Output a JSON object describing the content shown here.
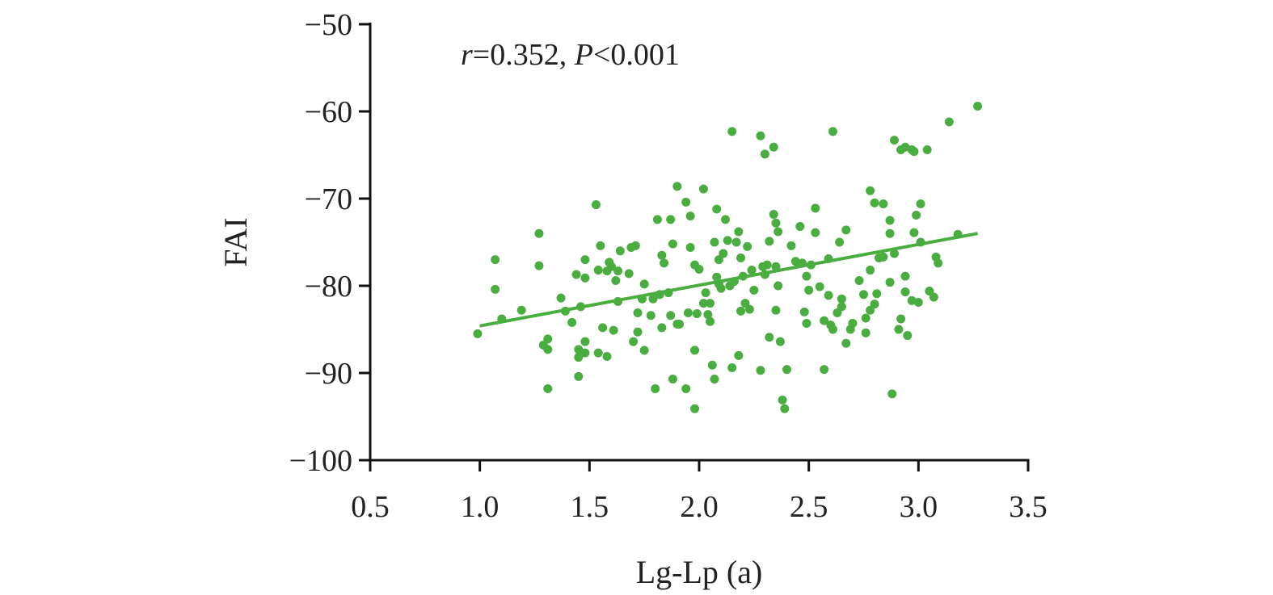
{
  "chart_data": {
    "type": "scatter",
    "title": "",
    "xlabel": "Lg-Lp (a)",
    "ylabel": "FAI",
    "xlim": [
      0.5,
      3.5
    ],
    "ylim": [
      -100,
      -50
    ],
    "xticks": [
      "0.5",
      "1.0",
      "1.5",
      "2.0",
      "2.5",
      "3.0",
      "3.5"
    ],
    "xtick_values": [
      0.5,
      1.0,
      1.5,
      2.0,
      2.5,
      3.0,
      3.5
    ],
    "yticks": [
      "−50",
      "−60",
      "−70",
      "−80",
      "−90",
      "−100"
    ],
    "ytick_values": [
      -50,
      -60,
      -70,
      -80,
      -90,
      -100
    ],
    "grid": false,
    "annotation": {
      "r_symbol": "r",
      "r_text": "=0.352, ",
      "p_symbol": "P",
      "p_text": "<0.001"
    },
    "point_color": "#4aad3f",
    "fit_line": {
      "x": [
        1.0,
        3.27
      ],
      "y": [
        -84.6,
        -74.0
      ]
    },
    "points": [
      [
        0.99,
        -85.5
      ],
      [
        1.07,
        -77.0
      ],
      [
        1.07,
        -80.4
      ],
      [
        1.1,
        -83.8
      ],
      [
        1.19,
        -82.8
      ],
      [
        1.27,
        -74.0
      ],
      [
        1.27,
        -77.7
      ],
      [
        1.29,
        -86.8
      ],
      [
        1.31,
        -86.1
      ],
      [
        1.31,
        -91.8
      ],
      [
        1.31,
        -87.3
      ],
      [
        1.37,
        -81.4
      ],
      [
        1.39,
        -82.9
      ],
      [
        1.42,
        -84.2
      ],
      [
        1.44,
        -78.7
      ],
      [
        1.45,
        -87.3
      ],
      [
        1.45,
        -88.2
      ],
      [
        1.45,
        -90.4
      ],
      [
        1.46,
        -82.4
      ],
      [
        1.48,
        -77.0
      ],
      [
        1.48,
        -79.1
      ],
      [
        1.48,
        -86.4
      ],
      [
        1.48,
        -87.7
      ],
      [
        1.53,
        -70.7
      ],
      [
        1.54,
        -78.2
      ],
      [
        1.54,
        -87.7
      ],
      [
        1.55,
        -75.4
      ],
      [
        1.56,
        -84.8
      ],
      [
        1.58,
        -78.3
      ],
      [
        1.58,
        -88.1
      ],
      [
        1.59,
        -77.3
      ],
      [
        1.6,
        -77.8
      ],
      [
        1.61,
        -85.1
      ],
      [
        1.62,
        -79.4
      ],
      [
        1.63,
        -78.3
      ],
      [
        1.63,
        -81.8
      ],
      [
        1.64,
        -76.0
      ],
      [
        1.68,
        -78.6
      ],
      [
        1.69,
        -75.6
      ],
      [
        1.7,
        -86.4
      ],
      [
        1.71,
        -75.4
      ],
      [
        1.72,
        -83.1
      ],
      [
        1.72,
        -85.3
      ],
      [
        1.74,
        -81.5
      ],
      [
        1.75,
        -79.8
      ],
      [
        1.75,
        -87.4
      ],
      [
        1.78,
        -83.4
      ],
      [
        1.79,
        -81.5
      ],
      [
        1.8,
        -91.8
      ],
      [
        1.81,
        -72.4
      ],
      [
        1.82,
        -81.0
      ],
      [
        1.83,
        -76.5
      ],
      [
        1.83,
        -84.8
      ],
      [
        1.84,
        -77.4
      ],
      [
        1.86,
        -80.8
      ],
      [
        1.87,
        -83.4
      ],
      [
        1.87,
        -72.4
      ],
      [
        1.88,
        -90.7
      ],
      [
        1.88,
        -75.2
      ],
      [
        1.9,
        -68.6
      ],
      [
        1.9,
        -84.4
      ],
      [
        1.91,
        -84.4
      ],
      [
        1.94,
        -91.8
      ],
      [
        1.94,
        -70.4
      ],
      [
        1.95,
        -83.1
      ],
      [
        1.96,
        -75.6
      ],
      [
        1.96,
        -72.0
      ],
      [
        1.98,
        -87.4
      ],
      [
        1.98,
        -94.1
      ],
      [
        1.98,
        -77.6
      ],
      [
        1.99,
        -83.2
      ],
      [
        2.0,
        -78.1
      ],
      [
        2.02,
        -68.9
      ],
      [
        2.02,
        -82.0
      ],
      [
        2.03,
        -80.8
      ],
      [
        2.04,
        -83.3
      ],
      [
        2.05,
        -82.0
      ],
      [
        2.05,
        -84.1
      ],
      [
        2.06,
        -89.1
      ],
      [
        2.07,
        -90.7
      ],
      [
        2.07,
        -75.0
      ],
      [
        2.08,
        -71.2
      ],
      [
        2.08,
        -79.0
      ],
      [
        2.09,
        -79.8
      ],
      [
        2.09,
        -77.0
      ],
      [
        2.1,
        -80.3
      ],
      [
        2.11,
        -76.3
      ],
      [
        2.12,
        -72.4
      ],
      [
        2.13,
        -74.8
      ],
      [
        2.14,
        -80.0
      ],
      [
        2.15,
        -89.4
      ],
      [
        2.15,
        -62.3
      ],
      [
        2.16,
        -79.5
      ],
      [
        2.17,
        -75.0
      ],
      [
        2.18,
        -88.0
      ],
      [
        2.18,
        -73.8
      ],
      [
        2.19,
        -82.9
      ],
      [
        2.19,
        -76.8
      ],
      [
        2.2,
        -78.9
      ],
      [
        2.21,
        -82.0
      ],
      [
        2.22,
        -75.5
      ],
      [
        2.23,
        -82.7
      ],
      [
        2.24,
        -78.2
      ],
      [
        2.25,
        -80.5
      ],
      [
        2.28,
        -89.7
      ],
      [
        2.28,
        -62.8
      ],
      [
        2.29,
        -77.8
      ],
      [
        2.3,
        -64.9
      ],
      [
        2.3,
        -78.7
      ],
      [
        2.31,
        -77.6
      ],
      [
        2.32,
        -85.9
      ],
      [
        2.32,
        -74.9
      ],
      [
        2.34,
        -71.8
      ],
      [
        2.34,
        -64.1
      ],
      [
        2.35,
        -72.8
      ],
      [
        2.35,
        -77.8
      ],
      [
        2.35,
        -82.8
      ],
      [
        2.36,
        -73.8
      ],
      [
        2.36,
        -80.0
      ],
      [
        2.37,
        -86.4
      ],
      [
        2.38,
        -93.1
      ],
      [
        2.39,
        -94.1
      ],
      [
        2.4,
        -89.6
      ],
      [
        2.42,
        -75.4
      ],
      [
        2.44,
        -77.2
      ],
      [
        2.46,
        -73.2
      ],
      [
        2.47,
        -77.4
      ],
      [
        2.48,
        -83.0
      ],
      [
        2.49,
        -78.9
      ],
      [
        2.49,
        -84.3
      ],
      [
        2.5,
        -80.5
      ],
      [
        2.51,
        -77.6
      ],
      [
        2.53,
        -73.9
      ],
      [
        2.53,
        -71.1
      ],
      [
        2.55,
        -80.1
      ],
      [
        2.57,
        -84.0
      ],
      [
        2.57,
        -89.6
      ],
      [
        2.59,
        -76.9
      ],
      [
        2.59,
        -81.1
      ],
      [
        2.6,
        -84.5
      ],
      [
        2.61,
        -85.0
      ],
      [
        2.63,
        -83.1
      ],
      [
        2.61,
        -62.3
      ],
      [
        2.64,
        -75.0
      ],
      [
        2.65,
        -81.5
      ],
      [
        2.65,
        -82.4
      ],
      [
        2.67,
        -73.6
      ],
      [
        2.67,
        -86.6
      ],
      [
        2.69,
        -85.0
      ],
      [
        2.7,
        -84.3
      ],
      [
        2.73,
        -79.4
      ],
      [
        2.75,
        -81.0
      ],
      [
        2.76,
        -83.7
      ],
      [
        2.76,
        -85.4
      ],
      [
        2.78,
        -82.8
      ],
      [
        2.78,
        -78.2
      ],
      [
        2.8,
        -82.1
      ],
      [
        2.81,
        -80.9
      ],
      [
        2.78,
        -69.1
      ],
      [
        2.8,
        -70.5
      ],
      [
        2.82,
        -76.8
      ],
      [
        2.84,
        -70.6
      ],
      [
        2.84,
        -76.7
      ],
      [
        2.87,
        -79.6
      ],
      [
        2.87,
        -74.0
      ],
      [
        2.87,
        -72.5
      ],
      [
        2.88,
        -92.4
      ],
      [
        2.89,
        -76.3
      ],
      [
        2.89,
        -63.3
      ],
      [
        2.91,
        -85.0
      ],
      [
        2.92,
        -83.8
      ],
      [
        2.92,
        -64.4
      ],
      [
        2.94,
        -64.1
      ],
      [
        2.94,
        -80.7
      ],
      [
        2.94,
        -78.9
      ],
      [
        2.95,
        -85.7
      ],
      [
        2.97,
        -64.4
      ],
      [
        2.98,
        -64.6
      ],
      [
        2.97,
        -81.7
      ],
      [
        2.98,
        -73.9
      ],
      [
        2.99,
        -71.9
      ],
      [
        3.0,
        -81.9
      ],
      [
        3.01,
        -75.0
      ],
      [
        3.04,
        -64.4
      ],
      [
        3.05,
        -80.6
      ],
      [
        3.07,
        -81.3
      ],
      [
        3.08,
        -76.7
      ],
      [
        3.09,
        -77.4
      ],
      [
        3.01,
        -70.6
      ],
      [
        3.14,
        -61.2
      ],
      [
        3.18,
        -74.1
      ],
      [
        3.27,
        -59.4
      ]
    ]
  }
}
